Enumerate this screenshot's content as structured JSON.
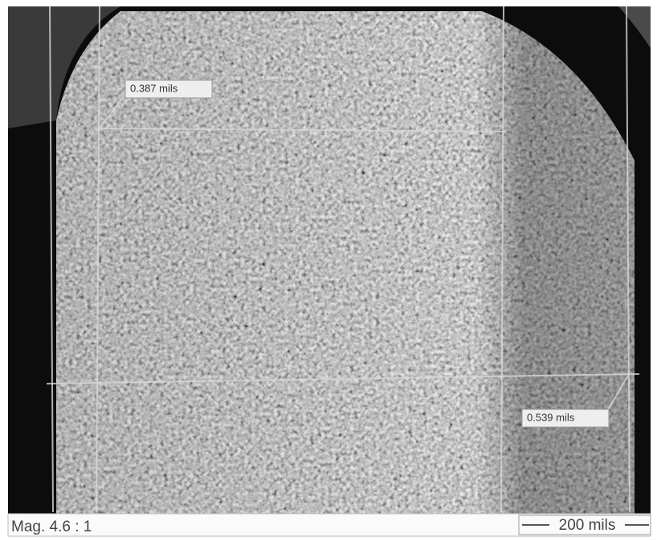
{
  "labels": {
    "top": "0.387 mils",
    "bottom": "0.539 mils"
  },
  "footer": {
    "magnification": "Mag. 4.6 : 1",
    "scale": "200 mils"
  }
}
